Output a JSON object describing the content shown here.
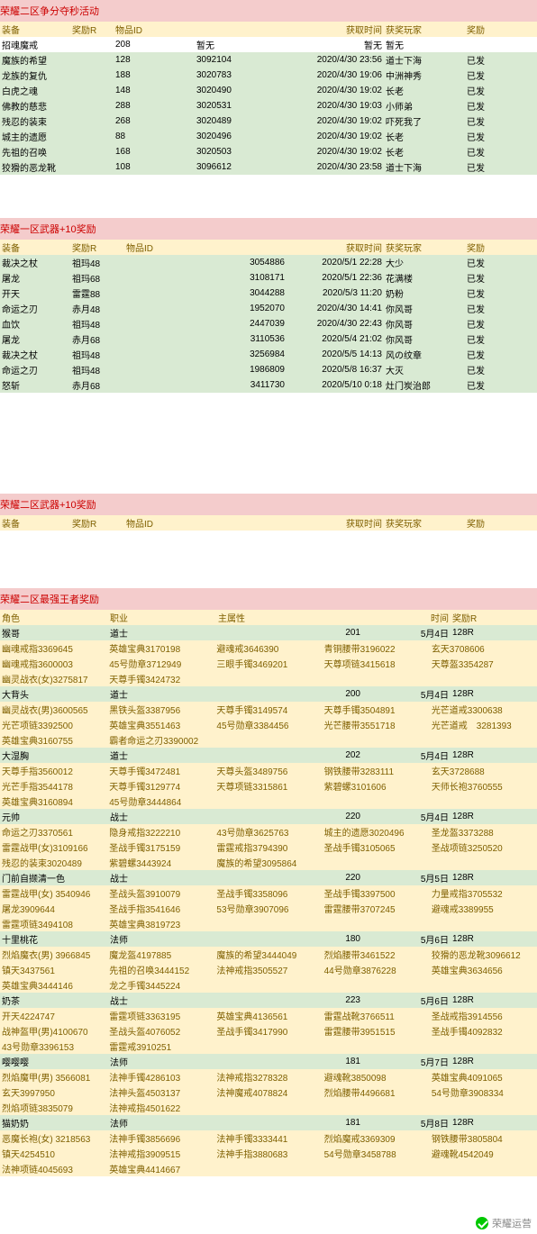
{
  "section1": {
    "title": "荣耀二区争分夺秒活动",
    "headers": [
      "装备",
      "奖励R",
      "物品ID",
      "",
      "获取时间",
      "获奖玩家",
      "奖励"
    ],
    "rows": [
      {
        "cls": "wht",
        "c": [
          "招魂魔戒",
          "",
          "208",
          "暂无",
          "暂无",
          "暂无",
          ""
        ]
      },
      {
        "cls": "grn",
        "c": [
          "魔族的希望",
          "",
          "128",
          "3092104",
          "2020/4/30 23:56",
          "道士下海",
          "已发"
        ]
      },
      {
        "cls": "grn",
        "c": [
          "龙族的复仇",
          "",
          "188",
          "3020783",
          "2020/4/30 19:06",
          "中洲神秀",
          "已发"
        ]
      },
      {
        "cls": "grn",
        "c": [
          "白虎之魂",
          "",
          "148",
          "3020490",
          "2020/4/30 19:02",
          "长老",
          "已发"
        ]
      },
      {
        "cls": "grn",
        "c": [
          "佛教的慈悲",
          "",
          "288",
          "3020531",
          "2020/4/30 19:03",
          "小师弟",
          "已发"
        ]
      },
      {
        "cls": "grn",
        "c": [
          "残忍的装束",
          "",
          "268",
          "3020489",
          "2020/4/30 19:02",
          "吓死我了",
          "已发"
        ]
      },
      {
        "cls": "grn",
        "c": [
          "城主的遗愿",
          "",
          "88",
          "3020496",
          "2020/4/30 19:02",
          "长老",
          "已发"
        ]
      },
      {
        "cls": "grn",
        "c": [
          "先祖的召唤",
          "",
          "168",
          "3020503",
          "2020/4/30 19:02",
          "长老",
          "已发"
        ]
      },
      {
        "cls": "grn",
        "c": [
          "狡猾的恶龙靴",
          "",
          "108",
          "3096612",
          "2020/4/30 23:58",
          "道士下海",
          "已发"
        ]
      }
    ]
  },
  "section2": {
    "title": "荣耀一区武器+10奖励",
    "headers": [
      "装备",
      "奖励R",
      "物品ID",
      "",
      "获取时间",
      "获奖玩家",
      "奖励"
    ],
    "rows": [
      {
        "cls": "grn",
        "c": [
          "裁决之杖",
          "祖玛48",
          "",
          "3054886",
          "2020/5/1 22:28",
          "大少",
          "已发"
        ]
      },
      {
        "cls": "grn",
        "c": [
          "屠龙",
          "祖玛68",
          "",
          "3108171",
          "2020/5/1 22:36",
          "花满楼",
          "已发"
        ]
      },
      {
        "cls": "grn",
        "c": [
          "开天",
          "雷霆88",
          "",
          "3044288",
          "2020/5/3 11:20",
          "奶粉",
          "已发"
        ]
      },
      {
        "cls": "grn",
        "c": [
          "命运之刃",
          "赤月48",
          "",
          "1952070",
          "2020/4/30 14:41",
          "你风哥",
          "已发"
        ]
      },
      {
        "cls": "grn",
        "c": [
          "血饮",
          "祖玛48",
          "",
          "2447039",
          "2020/4/30 22:43",
          "你风哥",
          "已发"
        ]
      },
      {
        "cls": "grn",
        "c": [
          "屠龙",
          "赤月68",
          "",
          "3110536",
          "2020/5/4 21:02",
          "你风哥",
          "已发"
        ]
      },
      {
        "cls": "grn",
        "c": [
          "裁决之杖",
          "祖玛48",
          "",
          "3256984",
          "2020/5/5 14:13",
          "风の纹章",
          "已发"
        ]
      },
      {
        "cls": "grn",
        "c": [
          "命运之刃",
          "祖玛48",
          "",
          "1986809",
          "2020/5/8 16:37",
          "大灭",
          "已发"
        ]
      },
      {
        "cls": "grn",
        "c": [
          "怒斩",
          "赤月68",
          "",
          "3411730",
          "2020/5/10 0:18",
          "灶门炭治郎",
          "已发"
        ]
      }
    ]
  },
  "section3": {
    "title": "荣耀二区武器+10奖励",
    "headers": [
      "装备",
      "奖励R",
      "物品ID",
      "",
      "获取时间",
      "获奖玩家",
      "奖励"
    ]
  },
  "section4": {
    "title": "荣耀二区最强王者奖励",
    "headers": [
      "角色",
      "职业",
      "主属性",
      "",
      "时间",
      "奖励R"
    ],
    "groups": [
      {
        "name": "猴哥",
        "job": "道士",
        "stat": "201",
        "date": "5月4日",
        "rw": "128R",
        "lines": [
          [
            "幽魂戒指3369645",
            "英雄宝典3170198",
            "避魂戒3646390",
            "青铜腰带3196022",
            "玄天3708606"
          ],
          [
            "幽魂戒指3600003",
            "45号勋章3712949",
            "三眼手镯3469201",
            "天尊项链3415618",
            "天尊盔3354287"
          ],
          [
            "幽灵战衣(女)3275817",
            "天尊手镯3424732",
            "",
            "",
            ""
          ]
        ]
      },
      {
        "name": "大背头",
        "job": "道士",
        "stat": "200",
        "date": "5月4日",
        "rw": "128R",
        "lines": [
          [
            "幽灵战衣(男)3600565",
            "黑铁头盔3387956",
            "天尊手镯3149574",
            "天尊手镯3504891",
            "光芒道戒3300638"
          ],
          [
            "光芒项链3392500",
            "英雄宝典3551463",
            "45号勋章3384456",
            "光芒腰带3551718",
            "光芒道戒　3281393"
          ],
          [
            "英雄宝典3160755",
            "霸者命运之刃3390002",
            "",
            "",
            ""
          ]
        ]
      },
      {
        "name": "大湿胸",
        "job": "道士",
        "stat": "202",
        "date": "5月4日",
        "rw": "128R",
        "lines": [
          [
            "天尊手指3560012",
            "天尊手镯3472481",
            "天尊头盔3489756",
            "钢铁腰带3283111",
            "玄天3728688"
          ],
          [
            "光芒手指3544178",
            "天尊手镯3129774",
            "天尊项链3315861",
            "紫碧螺3101606",
            "天师长袍3760555"
          ],
          [
            "英雄宝典3160894",
            "45号勋章3444864",
            "",
            "",
            ""
          ]
        ]
      },
      {
        "name": "元帅",
        "job": "战士",
        "stat": "220",
        "date": "5月4日",
        "rw": "128R",
        "lines": [
          [
            "命运之刃3370561",
            "隐身戒指3222210",
            "43号勋章3625763",
            "城主的遗愿3020496",
            "圣龙盔3373288"
          ],
          [
            "雷霆战甲(女)3109166",
            "圣战手镯3175159",
            "雷霆戒指3794390",
            "圣战手镯3105065",
            "圣战项链3250520"
          ],
          [
            "残忍的装束3020489",
            "紫碧螺3443924",
            "魔族的希望3095864",
            "",
            ""
          ]
        ]
      },
      {
        "name": "门前自撷清一色",
        "job": "战士",
        "stat": "220",
        "date": "5月5日",
        "rw": "128R",
        "lines": [
          [
            "雷霆战甲(女) 3540946",
            "圣战头盔3910079",
            "圣战手镯3358096",
            "圣战手镯3397500",
            "力量戒指3705532"
          ],
          [
            "屠龙3909644",
            "圣战手指3541646",
            "53号勋章3907096",
            "雷霆腰带3707245",
            "避魂戒3389955"
          ],
          [
            "雷霆项链3494108",
            "英雄宝典3819723",
            "",
            "",
            ""
          ]
        ]
      },
      {
        "name": "十里桃花",
        "job": "法师",
        "stat": "180",
        "date": "5月6日",
        "rw": "128R",
        "lines": [
          [
            "烈焰魔衣(男) 3966845",
            "魔龙盔4197885",
            "魔族的希望3444049",
            "烈焰腰带3461522",
            "狡猾的恶龙靴3096612"
          ],
          [
            "镇天3437561",
            "先祖的召唤3444152",
            "法神戒指3505527",
            "44号勋章3876228",
            "英雄宝典3634656"
          ],
          [
            "英雄宝典3444146",
            "龙之手镯3445224",
            "",
            "",
            ""
          ]
        ]
      },
      {
        "name": "奶茶",
        "job": "战士",
        "stat": "223",
        "date": "5月6日",
        "rw": "128R",
        "lines": [
          [
            "开天4224747",
            "雷霆项链3363195",
            "英雄宝典4136561",
            "雷霆战靴3766511",
            "圣战戒指3914556"
          ],
          [
            "战神盔甲(男)4100670",
            "圣战头盔4076052",
            "圣战手镯3417990",
            "雷霆腰带3951515",
            "圣战手镯4092832"
          ],
          [
            "43号勋章3396153",
            "雷霆戒3910251",
            "",
            "",
            ""
          ]
        ]
      },
      {
        "name": "嘤嘤嘤",
        "job": "法师",
        "stat": "181",
        "date": "5月7日",
        "rw": "128R",
        "lines": [
          [
            "烈焰魔甲(男) 3566081",
            "法神手镯4286103",
            "法神戒指3278328",
            "避魂靴3850098",
            "英雄宝典4091065"
          ],
          [
            "玄天3997950",
            "法神头盔4503137",
            "法神魔戒4078824",
            "烈焰腰带4496681",
            "54号勋章3908334"
          ],
          [
            "烈焰项链3835079",
            "法神戒指4501622",
            "",
            "",
            ""
          ]
        ]
      },
      {
        "name": "猫奶奶",
        "job": "法师",
        "stat": "181",
        "date": "5月8日",
        "rw": "128R",
        "lines": [
          [
            "恶魔长袍(女) 3218563",
            "法神手镯3856696",
            "法神手镯3333441",
            "烈焰魔戒3369309",
            "钢铁腰带3805804"
          ],
          [
            "镇天4254510",
            "法神戒指3909515",
            "法神手指3880683",
            "54号勋章3458788",
            "避魂靴4542049"
          ],
          [
            "法神项链4045693",
            "英雄宝典4414667",
            "",
            "",
            ""
          ]
        ]
      }
    ]
  },
  "watermark": "荣耀运营"
}
